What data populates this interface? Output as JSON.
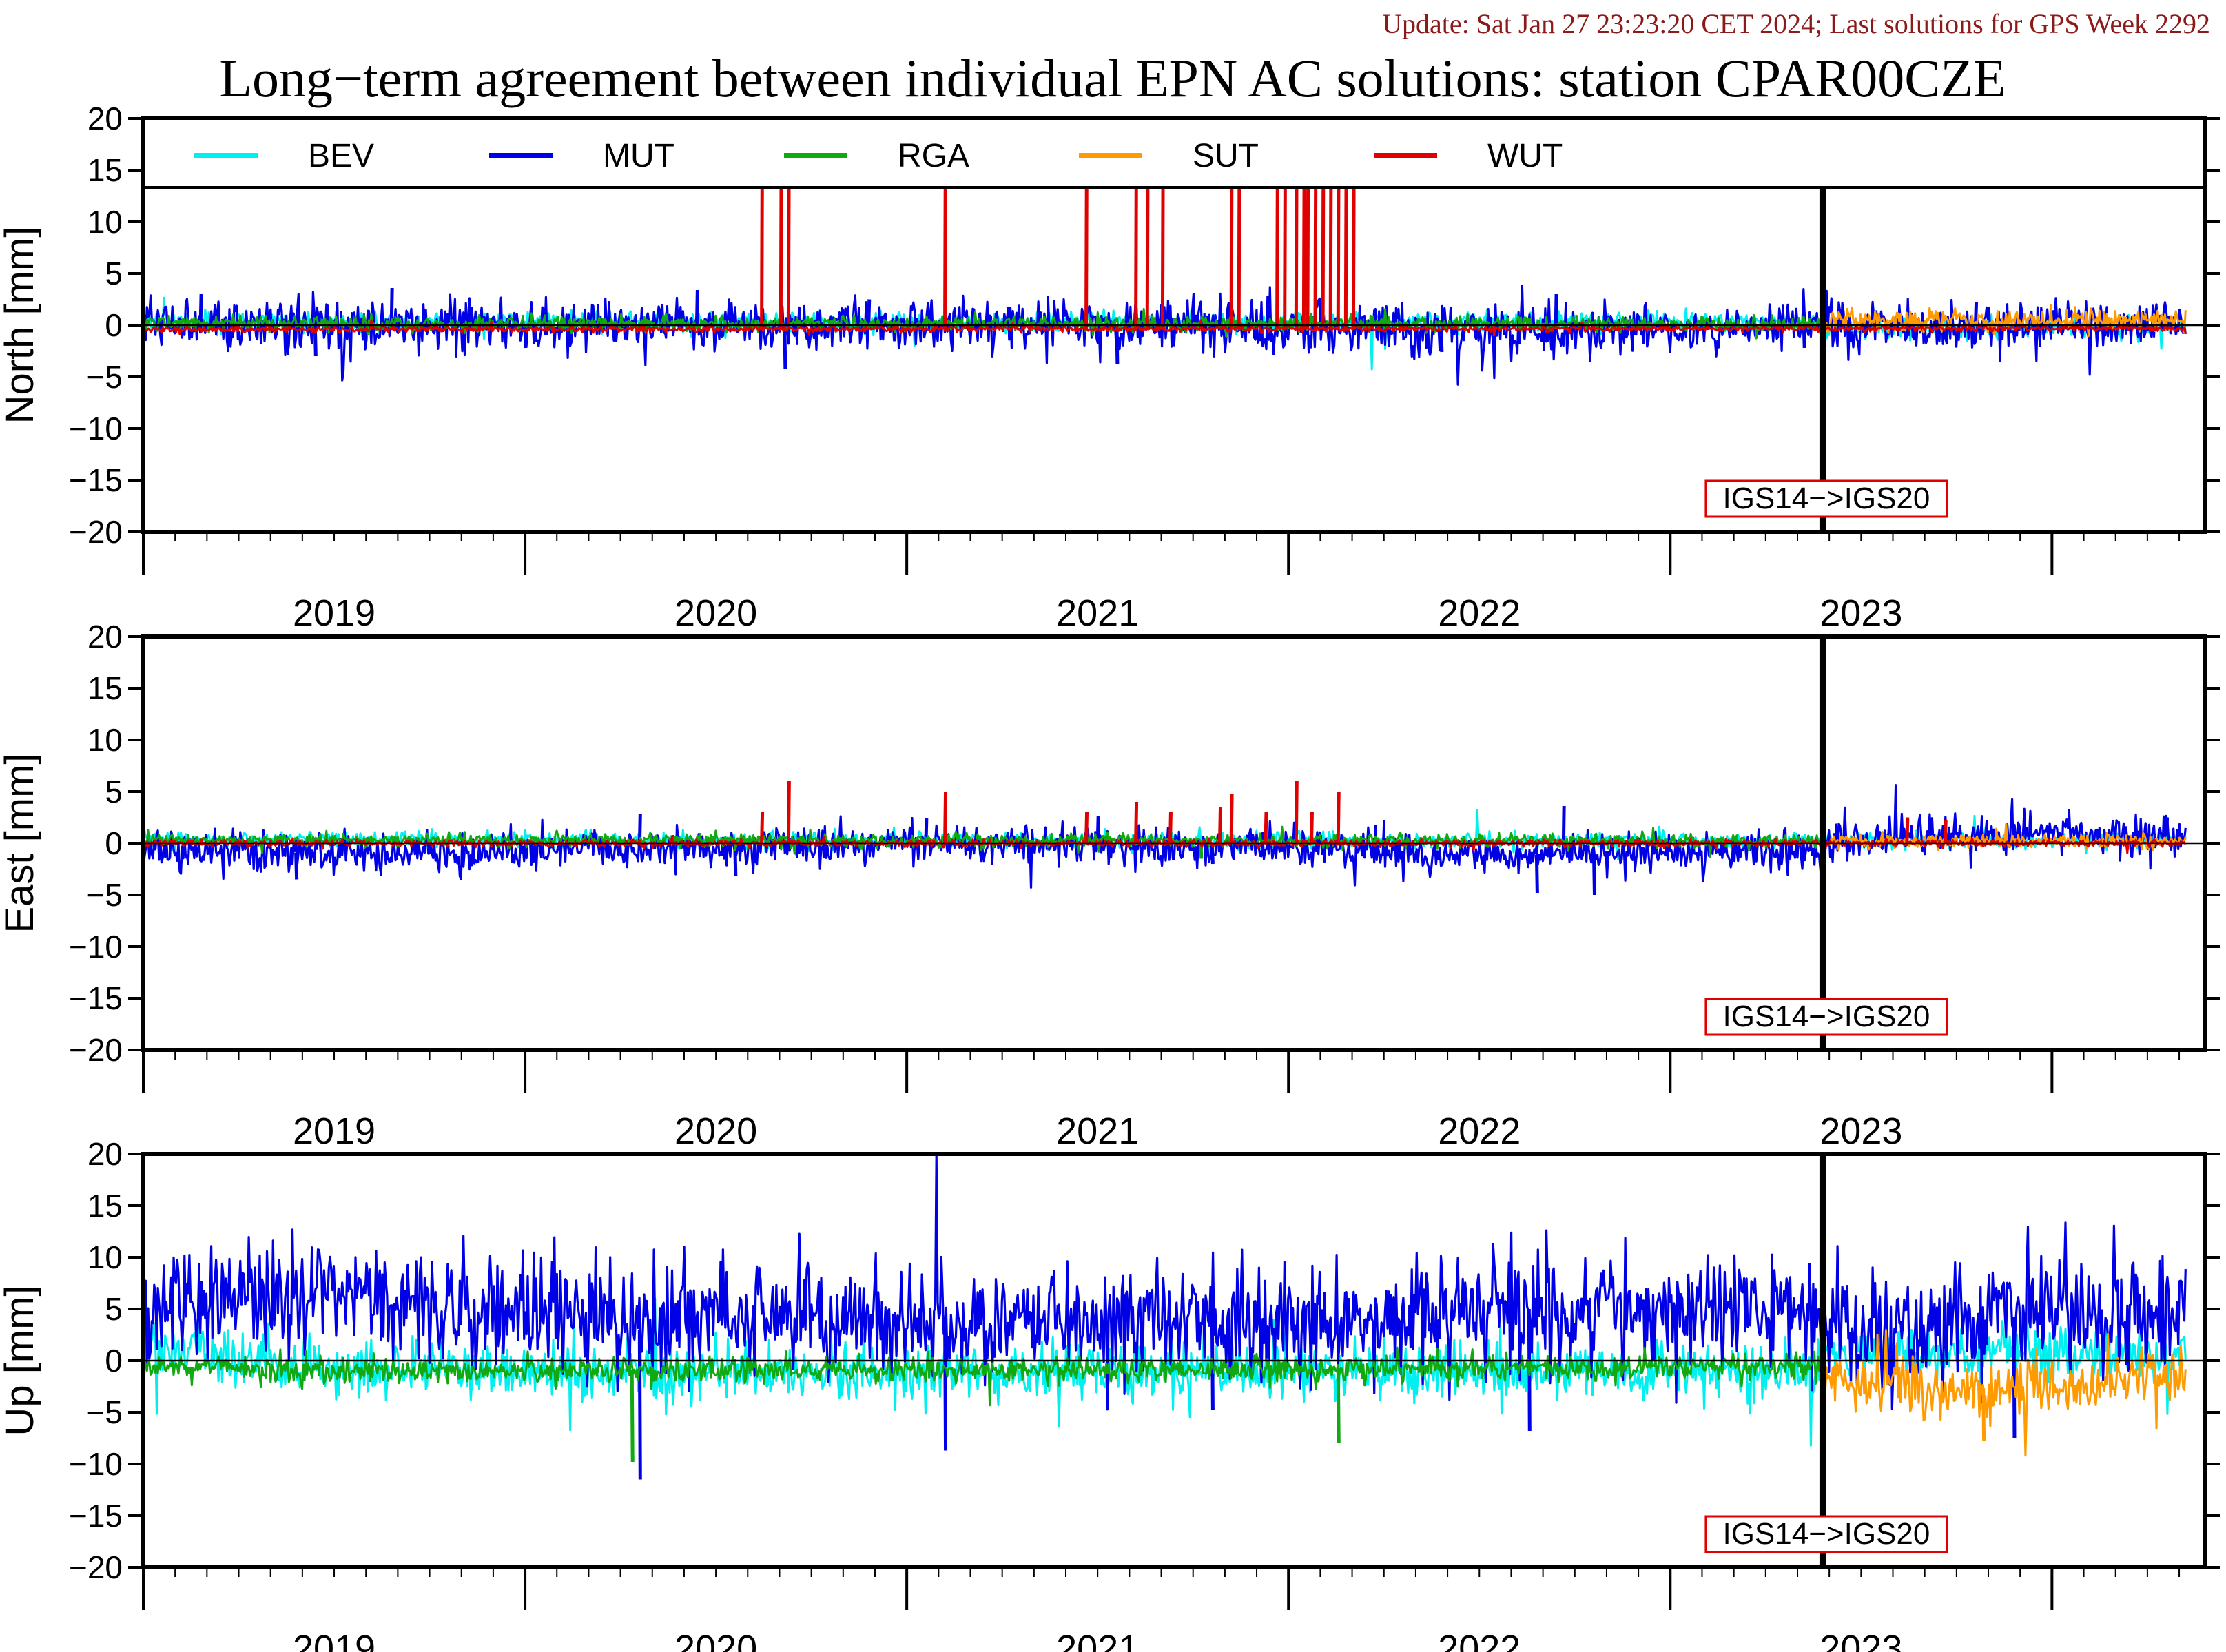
{
  "header": {
    "update": "Update: Sat Jan 27 23:23:20 CET 2024; Last solutions for GPS Week 2292",
    "title": "Long−term agreement between individual EPN AC solutions: station CPAR00CZE"
  },
  "colors": {
    "update_text": "#8b1a1a",
    "axis": "#000000",
    "annotation_border": "#e00000",
    "BEV": "#00f0f0",
    "MUT": "#0000e6",
    "RGA": "#12a812",
    "SUT": "#ff9a00",
    "WUT": "#e00000"
  },
  "chart_data": [
    {
      "type": "line",
      "panel": "north",
      "ylabel": "North [mm]",
      "ylim": [
        -20,
        20
      ],
      "yticks": [
        20,
        15,
        10,
        5,
        0,
        -5,
        -10,
        -15,
        -20
      ],
      "xlim": [
        2018.5,
        2023.9
      ],
      "xtick_labels": [
        "2019",
        "2020",
        "2021",
        "2022",
        "2023"
      ],
      "xtick_values": [
        2019.0,
        2020.0,
        2021.0,
        2022.0,
        2023.0
      ],
      "grid": false,
      "zero_line": true,
      "reframe_epoch": 2022.9,
      "annotation": "IGS14−>IGS20",
      "legend": {
        "placement": "top",
        "entries": [
          "BEV",
          "MUT",
          "RGA",
          "SUT",
          "WUT"
        ]
      },
      "series": [
        {
          "name": "BEV",
          "span": [
            2018.5,
            2023.85
          ],
          "mean": [
            [
              2018.5,
              0.3
            ],
            [
              2022.9,
              0.3
            ],
            [
              2022.91,
              -0.4
            ],
            [
              2023.85,
              -0.2
            ]
          ],
          "noise": 0.5
        },
        {
          "name": "MUT",
          "span": [
            2018.5,
            2023.85
          ],
          "mean": [
            [
              2018.5,
              0.2
            ],
            [
              2019.0,
              -0.2
            ],
            [
              2020.0,
              0.0
            ],
            [
              2021.0,
              0.1
            ],
            [
              2022.0,
              -0.5
            ],
            [
              2022.9,
              0.0
            ],
            [
              2023.85,
              0.3
            ]
          ],
          "noise": 1.2,
          "spikes": [
            [
              2018.65,
              3.0
            ],
            [
              2018.95,
              -3.0
            ],
            [
              2019.15,
              3.6
            ],
            [
              2019.5,
              -2.2
            ],
            [
              2019.95,
              3.4
            ],
            [
              2020.18,
              -4.2
            ],
            [
              2020.4,
              2.5
            ],
            [
              2021.05,
              -3.8
            ],
            [
              2021.9,
              -2.6
            ],
            [
              2022.2,
              3.0
            ],
            [
              2022.85,
              -2.2
            ],
            [
              2023.3,
              2.2
            ]
          ]
        },
        {
          "name": "RGA",
          "span": [
            2018.5,
            2022.9
          ],
          "mean": [
            [
              2018.5,
              0.2
            ],
            [
              2022.9,
              0.1
            ]
          ],
          "noise": 0.35
        },
        {
          "name": "SUT",
          "span": [
            2022.9,
            2023.85
          ],
          "mean": [
            [
              2022.9,
              0.5
            ],
            [
              2023.85,
              0.5
            ]
          ],
          "noise": 0.55
        },
        {
          "name": "WUT",
          "span": [
            2018.5,
            2023.85
          ],
          "mean": [
            [
              2018.5,
              -0.4
            ],
            [
              2023.85,
              -0.3
            ]
          ],
          "noise": 0.15,
          "spikes": [
            [
              2020.12,
              20
            ],
            [
              2020.17,
              20
            ],
            [
              2020.19,
              20
            ],
            [
              2020.6,
              20
            ],
            [
              2020.97,
              20
            ],
            [
              2021.1,
              20
            ],
            [
              2021.13,
              20
            ],
            [
              2021.17,
              20
            ],
            [
              2021.35,
              20
            ],
            [
              2021.37,
              20
            ],
            [
              2021.47,
              20
            ],
            [
              2021.49,
              20
            ],
            [
              2021.52,
              20
            ],
            [
              2021.54,
              20
            ],
            [
              2021.55,
              20
            ],
            [
              2021.57,
              20
            ],
            [
              2021.59,
              20
            ],
            [
              2021.61,
              20
            ],
            [
              2021.63,
              20
            ],
            [
              2021.65,
              20
            ],
            [
              2021.67,
              20
            ]
          ]
        }
      ]
    },
    {
      "type": "line",
      "panel": "east",
      "ylabel": "East [mm]",
      "ylim": [
        -20,
        20
      ],
      "yticks": [
        20,
        15,
        10,
        5,
        0,
        -5,
        -10,
        -15,
        -20
      ],
      "xlim": [
        2018.5,
        2023.9
      ],
      "xtick_labels": [
        "2019",
        "2020",
        "2021",
        "2022",
        "2023"
      ],
      "xtick_values": [
        2019.0,
        2020.0,
        2021.0,
        2022.0,
        2023.0
      ],
      "grid": false,
      "zero_line": true,
      "reframe_epoch": 2022.9,
      "annotation": "IGS14−>IGS20",
      "series": [
        {
          "name": "BEV",
          "span": [
            2018.5,
            2023.85
          ],
          "mean": [
            [
              2018.5,
              0.3
            ],
            [
              2022.9,
              0.2
            ],
            [
              2022.91,
              0.3
            ],
            [
              2023.85,
              0.4
            ]
          ],
          "noise": 0.4
        },
        {
          "name": "MUT",
          "span": [
            2018.5,
            2023.85
          ],
          "mean": [
            [
              2018.5,
              -0.5
            ],
            [
              2019.0,
              -1.0
            ],
            [
              2019.5,
              -0.6
            ],
            [
              2020.0,
              -0.3
            ],
            [
              2021.0,
              0.0
            ],
            [
              2021.5,
              -0.4
            ],
            [
              2022.0,
              -1.2
            ],
            [
              2022.9,
              -0.6
            ],
            [
              2022.91,
              0.4
            ],
            [
              2023.5,
              0.9
            ],
            [
              2023.85,
              0.6
            ]
          ],
          "noise": 0.9,
          "spikes": [
            [
              2018.9,
              -3.5
            ],
            [
              2019.8,
              2.8
            ],
            [
              2020.05,
              -3.2
            ],
            [
              2020.55,
              2.4
            ],
            [
              2021.0,
              2.6
            ],
            [
              2021.3,
              -2.0
            ],
            [
              2022.15,
              -4.8
            ],
            [
              2022.22,
              3.6
            ],
            [
              2022.3,
              -5.0
            ],
            [
              2023.8,
              2.5
            ]
          ]
        },
        {
          "name": "RGA",
          "span": [
            2018.5,
            2022.9
          ],
          "mean": [
            [
              2018.5,
              0.3
            ],
            [
              2022.9,
              0.2
            ]
          ],
          "noise": 0.3,
          "spikes": [
            [
              2021.27,
              -1.5
            ]
          ]
        },
        {
          "name": "SUT",
          "span": [
            2022.9,
            2023.85
          ],
          "mean": [
            [
              2022.9,
              0.1
            ],
            [
              2023.85,
              0.2
            ]
          ],
          "noise": 0.35
        },
        {
          "name": "WUT",
          "span": [
            2018.5,
            2023.85
          ],
          "mean": [
            [
              2018.5,
              0.0
            ],
            [
              2023.85,
              0.0
            ]
          ],
          "noise": 0.15,
          "spikes": [
            [
              2020.12,
              3.0
            ],
            [
              2020.19,
              6.0
            ],
            [
              2020.6,
              5.0
            ],
            [
              2020.97,
              3.0
            ],
            [
              2021.1,
              4.0
            ],
            [
              2021.19,
              3.0
            ],
            [
              2021.32,
              3.5
            ],
            [
              2021.35,
              4.8
            ],
            [
              2021.44,
              3.0
            ],
            [
              2021.52,
              6.0
            ],
            [
              2021.56,
              3.0
            ],
            [
              2021.63,
              5.0
            ],
            [
              2023.12,
              2.5
            ],
            [
              2023.22,
              2.2
            ]
          ]
        }
      ]
    },
    {
      "type": "line",
      "panel": "up",
      "ylabel": "Up [mm]",
      "ylim": [
        -20,
        20
      ],
      "yticks": [
        20,
        15,
        10,
        5,
        0,
        -5,
        -10,
        -15,
        -20
      ],
      "xlim": [
        2018.5,
        2023.9
      ],
      "xtick_labels": [
        "2019",
        "2020",
        "2021",
        "2022",
        "2023"
      ],
      "xtick_values": [
        2019.0,
        2020.0,
        2021.0,
        2022.0,
        2023.0
      ],
      "grid": false,
      "zero_line": true,
      "reframe_epoch": 2022.9,
      "annotation": "IGS14−>IGS20",
      "series": [
        {
          "name": "BEV",
          "span": [
            2018.5,
            2023.85
          ],
          "mean": [
            [
              2018.5,
              1.5
            ],
            [
              2018.7,
              0.5
            ],
            [
              2019.0,
              -1.0
            ],
            [
              2020.0,
              -1.0
            ],
            [
              2021.0,
              -1.2
            ],
            [
              2022.0,
              -1.0
            ],
            [
              2022.9,
              -1.0
            ],
            [
              2022.91,
              0.8
            ],
            [
              2023.85,
              0.5
            ]
          ],
          "noise": 1.3
        },
        {
          "name": "MUT",
          "span": [
            2018.5,
            2023.85
          ],
          "mean": [
            [
              2018.5,
              4.5
            ],
            [
              2018.8,
              6.5
            ],
            [
              2019.5,
              5.0
            ],
            [
              2019.8,
              3.0
            ],
            [
              2020.0,
              5.0
            ],
            [
              2020.5,
              4.0
            ],
            [
              2021.0,
              4.0
            ],
            [
              2021.5,
              3.5
            ],
            [
              2022.0,
              5.0
            ],
            [
              2022.9,
              5.0
            ],
            [
              2022.91,
              3.0
            ],
            [
              2023.5,
              4.5
            ],
            [
              2023.85,
              4.0
            ]
          ],
          "noise": 2.8,
          "spikes": [
            [
              2019.8,
              -11.5
            ],
            [
              2020.6,
              -8.7
            ],
            [
              2021.3,
              -4.8
            ],
            [
              2022.13,
              -6.8
            ],
            [
              2023.4,
              -7.5
            ]
          ]
        },
        {
          "name": "RGA",
          "span": [
            2018.5,
            2022.9
          ],
          "mean": [
            [
              2018.5,
              -0.5
            ],
            [
              2019.0,
              -1.0
            ],
            [
              2020.0,
              -0.9
            ],
            [
              2021.0,
              -0.9
            ],
            [
              2022.0,
              -0.7
            ],
            [
              2022.9,
              -0.5
            ]
          ],
          "noise": 0.6,
          "spikes": [
            [
              2019.78,
              -9.8
            ],
            [
              2021.63,
              -8.0
            ]
          ]
        },
        {
          "name": "SUT",
          "span": [
            2022.9,
            2023.85
          ],
          "mean": [
            [
              2022.9,
              -2.0
            ],
            [
              2023.2,
              -2.8
            ],
            [
              2023.5,
              -2.5
            ],
            [
              2023.85,
              -1.2
            ]
          ],
          "noise": 1.5,
          "spikes": [
            [
              2023.32,
              -7.8
            ]
          ]
        }
      ]
    }
  ]
}
